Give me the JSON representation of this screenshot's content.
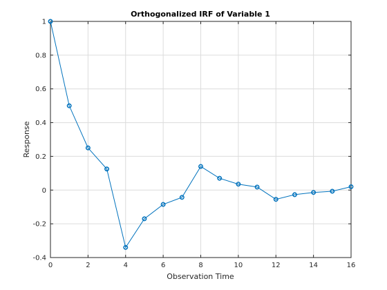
{
  "chart_data": {
    "type": "line",
    "title": "Orthogonalized IRF of Variable 1",
    "xlabel": "Observation Time",
    "ylabel": "Response",
    "xlim": [
      0,
      16
    ],
    "ylim": [
      -0.4,
      1
    ],
    "xticks": [
      0,
      2,
      4,
      6,
      8,
      10,
      12,
      14,
      16
    ],
    "yticks": [
      -0.4,
      -0.2,
      0,
      0.2,
      0.4,
      0.6,
      0.8,
      1
    ],
    "ytick_labels": [
      "-0.4",
      "-0.2",
      "0",
      "0.2",
      "0.4",
      "0.6",
      "0.8",
      "1"
    ],
    "grid": true,
    "marker": "diamond-circle",
    "color": "#0072bd",
    "series": [
      {
        "x": [
          0,
          1,
          2,
          3,
          4,
          5,
          6,
          7,
          8,
          9,
          10,
          11,
          12,
          13,
          14,
          15,
          16
        ],
        "values": [
          1.0,
          0.5,
          0.25,
          0.125,
          -0.34,
          -0.17,
          -0.085,
          -0.043,
          0.14,
          0.07,
          0.035,
          0.018,
          -0.055,
          -0.027,
          -0.014,
          -0.007,
          0.02
        ]
      }
    ]
  }
}
